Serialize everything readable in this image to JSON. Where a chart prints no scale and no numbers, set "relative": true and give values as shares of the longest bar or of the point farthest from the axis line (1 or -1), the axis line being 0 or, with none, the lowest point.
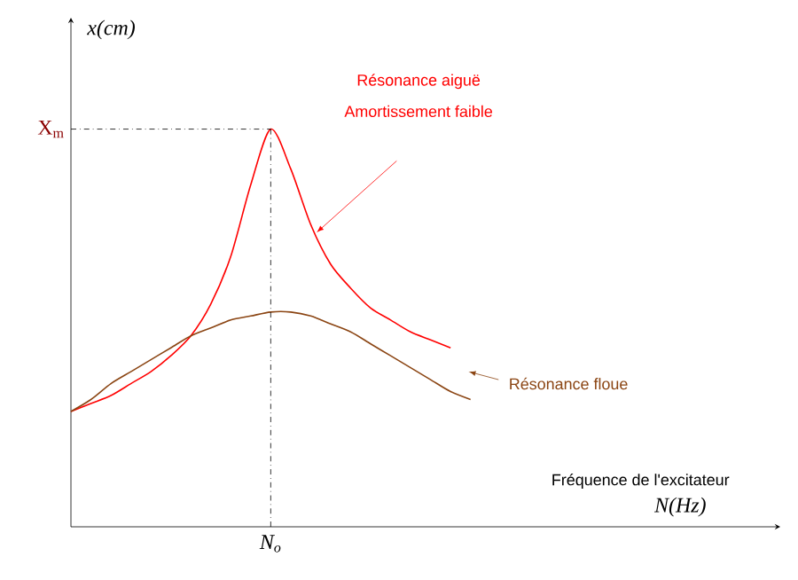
{
  "chart_data": {
    "type": "line",
    "relative": true,
    "xlabel": "N(Hz)",
    "ylabel": "x(cm)",
    "categories": [
      null,
      null,
      null,
      null,
      null,
      null,
      null,
      null,
      null,
      null,
      null,
      null,
      null,
      null,
      null,
      null,
      null,
      null,
      null,
      null,
      null,
      null,
      null,
      null,
      null,
      null,
      null,
      null,
      null,
      null,
      null,
      null,
      null,
      null,
      null,
      null
    ],
    "series": [
      {
        "name": "Résonance aiguë",
        "color": "#ff0000",
        "values": [
          0.29,
          0.31,
          0.33,
          0.36,
          0.39,
          0.43,
          0.48,
          0.56,
          0.68,
          0.86,
          1.0,
          0.9,
          0.76,
          0.66,
          0.6,
          0.55,
          0.52,
          0.49,
          0.47,
          0.45,
          null,
          null,
          null,
          null,
          null,
          null,
          null,
          null,
          null,
          null,
          null,
          null,
          null,
          null,
          null,
          null
        ]
      },
      {
        "name": "Résonance floue",
        "color": "#8b4513",
        "values": [
          0.29,
          0.32,
          0.36,
          0.39,
          0.42,
          0.45,
          0.48,
          0.5,
          0.52,
          0.53,
          0.54,
          0.54,
          0.53,
          0.51,
          0.49,
          0.46,
          0.43,
          0.4,
          0.37,
          0.34,
          0.32,
          null,
          null,
          null,
          null,
          null,
          null,
          null,
          null,
          null,
          null,
          null,
          null,
          null,
          null,
          null
        ]
      }
    ],
    "ref_lines": [
      {
        "axis": "y",
        "value": 1,
        "label": "X$_{m}$",
        "line_style": "dashdot",
        "color": "#000000"
      }
    ],
    "annotations": [
      "Amortissement faible",
      "Fréquence de l'excitateur",
      "N$_{o}$"
    ],
    "grid": false
  }
}
